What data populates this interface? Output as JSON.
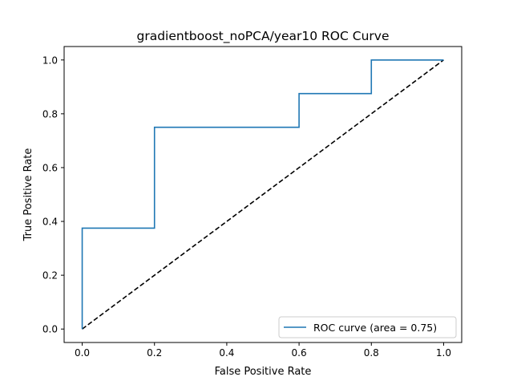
{
  "chart_data": {
    "type": "line",
    "title": "gradientboost_noPCA/year10 ROC Curve",
    "xlabel": "False Positive Rate",
    "ylabel": "True Positive Rate",
    "xlim": [
      -0.05,
      1.05
    ],
    "ylim": [
      -0.05,
      1.05
    ],
    "xticks": [
      "0.0",
      "0.2",
      "0.4",
      "0.6",
      "0.8",
      "1.0"
    ],
    "yticks": [
      "0.0",
      "0.2",
      "0.4",
      "0.6",
      "0.8",
      "1.0"
    ],
    "grid": false,
    "legend_position": "lower-right",
    "series": [
      {
        "name": "ROC curve (area = 0.75)",
        "color": "#1f77b4",
        "style": "solid",
        "x": [
          0.0,
          0.0,
          0.2,
          0.2,
          0.6,
          0.6,
          0.8,
          0.8,
          1.0
        ],
        "y": [
          0.0,
          0.375,
          0.375,
          0.75,
          0.75,
          0.875,
          0.875,
          1.0,
          1.0
        ]
      },
      {
        "color": "#000000",
        "style": "dashed",
        "x": [
          0.0,
          1.0
        ],
        "y": [
          0.0,
          1.0
        ]
      }
    ]
  }
}
